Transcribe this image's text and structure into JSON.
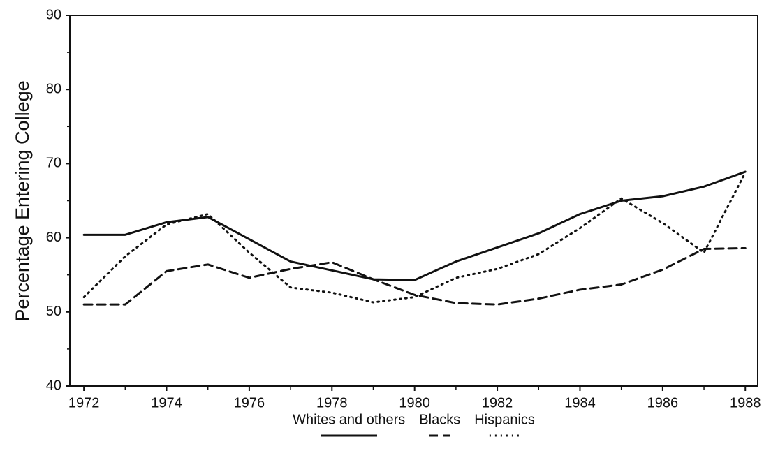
{
  "chart_data": {
    "type": "line",
    "y_label": "Percentage Entering College",
    "x": [
      1972,
      1973,
      1974,
      1975,
      1976,
      1977,
      1978,
      1979,
      1980,
      1981,
      1982,
      1983,
      1984,
      1985,
      1986,
      1987,
      1988
    ],
    "series": [
      {
        "name": "Whites and others",
        "color": "#111111",
        "style": "solid",
        "values": [
          60.4,
          60.4,
          62.1,
          62.8,
          59.8,
          56.8,
          55.6,
          54.4,
          54.3,
          56.8,
          58.7,
          60.6,
          63.2,
          65.0,
          65.6,
          66.9,
          68.9
        ]
      },
      {
        "name": "Blacks",
        "color": "#111111",
        "style": "dashed",
        "values": [
          51.0,
          51.0,
          55.5,
          56.4,
          54.6,
          55.8,
          56.7,
          54.4,
          52.3,
          51.2,
          51.0,
          51.8,
          53.0,
          53.7,
          55.7,
          58.5,
          58.6
        ]
      },
      {
        "name": "Hispanics",
        "color": "#111111",
        "style": "dotted",
        "values": [
          52.0,
          57.5,
          61.8,
          63.2,
          58.0,
          53.3,
          52.6,
          51.3,
          52.0,
          54.6,
          55.8,
          57.8,
          61.3,
          65.3,
          62.0,
          58.0,
          68.8
        ]
      }
    ],
    "xlim": [
      1971.66,
      1988.3
    ],
    "xticks": [
      1972,
      1974,
      1976,
      1978,
      1980,
      1982,
      1984,
      1986,
      1988
    ],
    "ylim": [
      40,
      90
    ],
    "yticks": [
      40,
      50,
      60,
      70,
      80,
      90
    ],
    "grid": false,
    "legend": "bottom"
  }
}
